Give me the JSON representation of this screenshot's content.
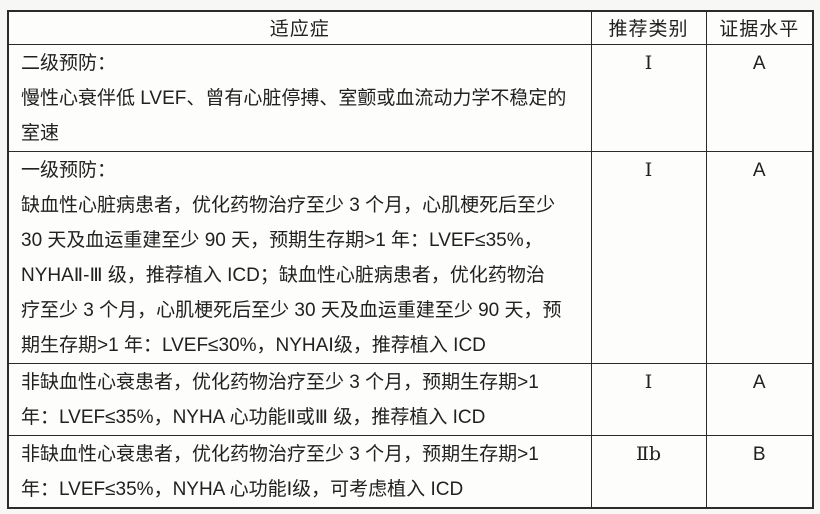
{
  "colors": {
    "page_background": "#f7f7f6",
    "table_background": "#fdfdfc",
    "border": "#2b2b2b",
    "text": "#212121"
  },
  "table": {
    "headers": {
      "indication": "适应症",
      "recommendation": "推荐类别",
      "evidence": "证据水平"
    },
    "rows": [
      {
        "indication": "二级预防：\n慢性心衰伴低 LVEF、曾有心脏停搏、室颤或血流动力学不稳定的\n室速",
        "recommendation": "Ⅰ",
        "evidence": "A"
      },
      {
        "indication": "一级预防：\n缺血性心脏病患者，优化药物治疗至少 3 个月，心肌梗死后至少\n30 天及血运重建至少 90 天，预期生存期>1 年：LVEF≤35%，\nNYHAⅡ-Ⅲ 级，推荐植入 ICD；缺血性心脏病患者，优化药物治\n疗至少 3 个月，心肌梗死后至少 30 天及血运重建至少 90 天，预\n期生存期>1 年：LVEF≤30%，NYHAⅠ级，推荐植入 ICD",
        "recommendation": "Ⅰ",
        "evidence": "A"
      },
      {
        "indication": "非缺血性心衰患者，优化药物治疗至少 3 个月，预期生存期>1\n年：LVEF≤35%，NYHA 心功能Ⅱ或Ⅲ 级，推荐植入 ICD",
        "recommendation": "Ⅰ",
        "evidence": "A"
      },
      {
        "indication": "非缺血性心衰患者，优化药物治疗至少 3 个月，预期生存期>1\n年：LVEF≤35%，NYHA 心功能Ⅰ级，可考虑植入 ICD",
        "recommendation": "Ⅱb",
        "evidence": "B"
      }
    ]
  }
}
